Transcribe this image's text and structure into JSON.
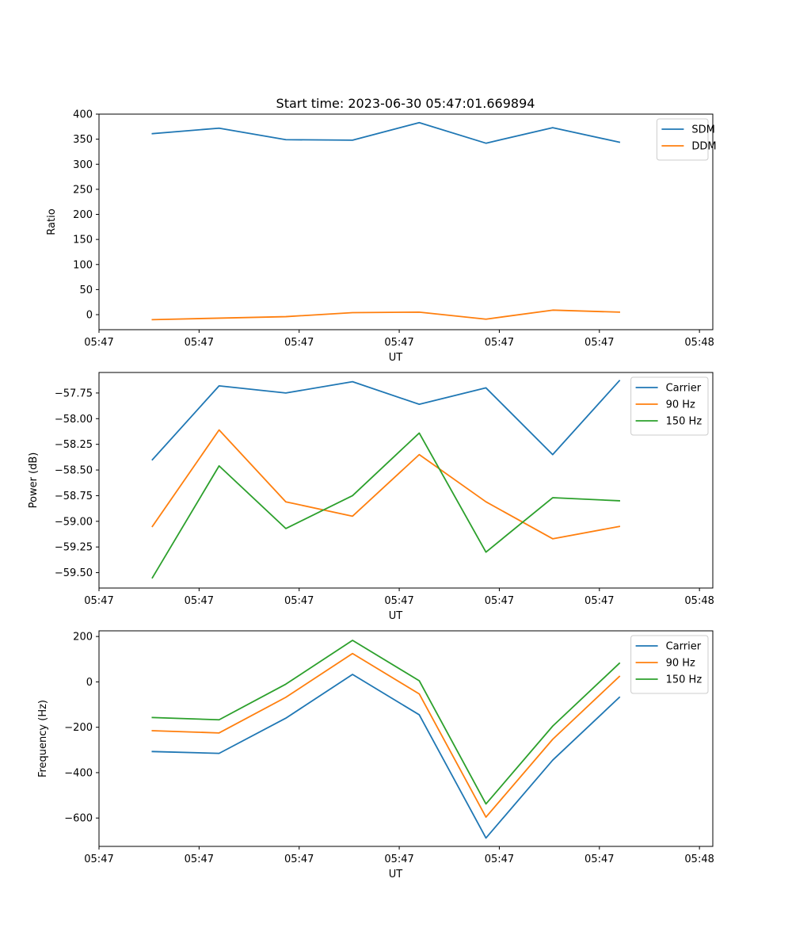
{
  "figure": {
    "title": "Start time: 2023-06-30 05:47:01.669894"
  },
  "colors": {
    "blue": "#1f77b4",
    "orange": "#ff7f0e",
    "green": "#2ca02c"
  },
  "chart_data": [
    {
      "type": "line",
      "title": "Start time: 2023-06-30 05:47:01.669894",
      "xlabel": "UT",
      "ylabel": "Ratio",
      "x": [
        1,
        2,
        3,
        4,
        5,
        6,
        7,
        8
      ],
      "xlim": [
        0.2,
        9.4
      ],
      "xticks": [
        0.2,
        1.7,
        3.2,
        4.7,
        6.2,
        7.7,
        9.2
      ],
      "xtick_labels": [
        "05:47",
        "05:47",
        "05:47",
        "05:47",
        "05:47",
        "05:47",
        "05:48"
      ],
      "ylim": [
        -30,
        400
      ],
      "yticks": [
        0,
        50,
        100,
        150,
        200,
        250,
        300,
        350,
        400
      ],
      "ytick_labels": [
        "0",
        "50",
        "100",
        "150",
        "200",
        "250",
        "300",
        "350",
        "400"
      ],
      "legend": "top-right",
      "grid": false,
      "series": [
        {
          "name": "SDM",
          "color": "blue",
          "values": [
            361,
            372,
            349,
            348,
            383,
            342,
            373,
            344
          ]
        },
        {
          "name": "DDM",
          "color": "orange",
          "values": [
            -10,
            -7,
            -4,
            4,
            5,
            -9,
            9,
            5
          ]
        }
      ]
    },
    {
      "type": "line",
      "xlabel": "UT",
      "ylabel": "Power (dB)",
      "x": [
        1,
        2,
        3,
        4,
        5,
        6,
        7,
        8
      ],
      "xlim": [
        0.2,
        9.4
      ],
      "xticks": [
        0.2,
        1.7,
        3.2,
        4.7,
        6.2,
        7.7,
        9.2
      ],
      "xtick_labels": [
        "05:47",
        "05:47",
        "05:47",
        "05:47",
        "05:47",
        "05:47",
        "05:48"
      ],
      "ylim": [
        -59.65,
        -57.55
      ],
      "yticks": [
        -59.5,
        -59.25,
        -59.0,
        -58.75,
        -58.5,
        -58.25,
        -58.0,
        -57.75
      ],
      "ytick_labels": [
        "−59.50",
        "−59.25",
        "−59.00",
        "−58.75",
        "−58.50",
        "−58.25",
        "−58.00",
        "−57.75"
      ],
      "legend": "top-right",
      "grid": false,
      "series": [
        {
          "name": "Carrier",
          "color": "blue",
          "values": [
            -58.4,
            -57.68,
            -57.75,
            -57.64,
            -57.86,
            -57.7,
            -58.35,
            -57.63
          ]
        },
        {
          "name": "90 Hz",
          "color": "orange",
          "values": [
            -59.05,
            -58.11,
            -58.81,
            -58.95,
            -58.35,
            -58.81,
            -59.17,
            -59.05
          ]
        },
        {
          "name": "150 Hz",
          "color": "green",
          "values": [
            -59.55,
            -58.46,
            -59.07,
            -58.75,
            -58.14,
            -59.3,
            -58.77,
            -58.8
          ]
        }
      ]
    },
    {
      "type": "line",
      "xlabel": "UT",
      "ylabel": "Frequency (Hz)",
      "x": [
        1,
        2,
        3,
        4,
        5,
        6,
        7,
        8
      ],
      "xlim": [
        0.2,
        9.4
      ],
      "xticks": [
        0.2,
        1.7,
        3.2,
        4.7,
        6.2,
        7.7,
        9.2
      ],
      "xtick_labels": [
        "05:47",
        "05:47",
        "05:47",
        "05:47",
        "05:47",
        "05:47",
        "05:48"
      ],
      "ylim": [
        -725,
        225
      ],
      "yticks": [
        -600,
        -400,
        -200,
        0,
        200
      ],
      "ytick_labels": [
        "−600",
        "−400",
        "−200",
        "0",
        "200"
      ],
      "legend": "top-right",
      "grid": false,
      "series": [
        {
          "name": "Carrier",
          "color": "blue",
          "values": [
            -307,
            -315,
            -160,
            33,
            -145,
            -688,
            -345,
            -68
          ]
        },
        {
          "name": "90 Hz",
          "color": "orange",
          "values": [
            -215,
            -225,
            -68,
            125,
            -53,
            -596,
            -253,
            24
          ]
        },
        {
          "name": "150 Hz",
          "color": "green",
          "values": [
            -157,
            -167,
            -10,
            183,
            5,
            -538,
            -195,
            82
          ]
        }
      ]
    }
  ]
}
